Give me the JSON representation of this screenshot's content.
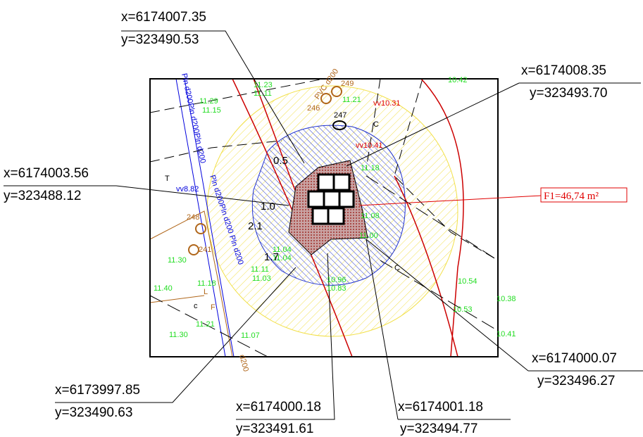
{
  "callouts": [
    {
      "x": "x=6174007.35",
      "y": "y=323490.53"
    },
    {
      "x": "x=6174008.35",
      "y": "y=323493.70"
    },
    {
      "x": "x=6174003.56",
      "y": "y=323488.12"
    },
    {
      "x": "x=6174000.07",
      "y": "y=323496.27"
    },
    {
      "x": "x=6173997.85",
      "y": "y=323490.63"
    },
    {
      "x": "x=6174000.18",
      "y": "y=323491.61"
    },
    {
      "x": "x=6174001.18",
      "y": "y=323494.77"
    }
  ],
  "area_label": "F1=46,74 m²",
  "dimensions": [
    "0.5",
    "1.0",
    "2.1",
    "1.7"
  ],
  "elevations": [
    "10.42",
    "11.29",
    "11.15",
    "11.23",
    "11.11",
    "11.21",
    "11.18",
    "11.08",
    "11.00",
    "11.04",
    "11.04",
    "11.30",
    "11.11",
    "11.03",
    "11.18",
    "11.40",
    "10.96",
    "10.83",
    "10.54",
    "10.38",
    "10.53",
    "10.41",
    "11.30",
    "11.21",
    "11.07"
  ],
  "red_levels": [
    "vv10.31",
    "vv10.41"
  ],
  "blue_level": "vv8.82",
  "points": [
    "246",
    "249",
    "247",
    "248",
    "241"
  ],
  "pipe_labels": [
    "PVC d200",
    "Pln d200Pln d200Pln d200",
    "Pln d200Pln d200 Pln d200",
    "d200"
  ],
  "letters": [
    "C",
    "C",
    "c",
    "T",
    "L",
    "F"
  ]
}
